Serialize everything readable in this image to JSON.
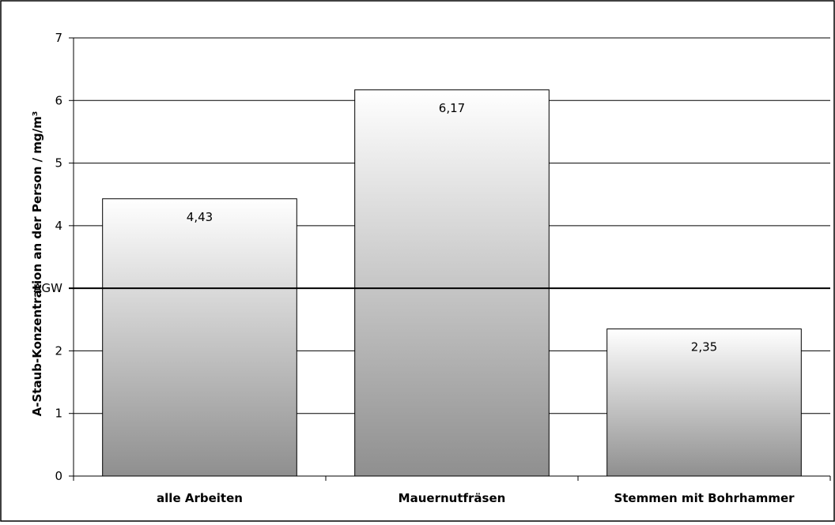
{
  "chart_data": {
    "type": "bar",
    "categories": [
      "alle Arbeiten",
      "Mauernutfräsen",
      "Stemmen mit Bohrhammer"
    ],
    "values": [
      4.43,
      6.17,
      2.35
    ],
    "value_labels": [
      "4,43",
      "6,17",
      "2,35"
    ],
    "title": "",
    "xlabel": "",
    "ylabel": "A-Staub-Konzentration an der Person / mg/m³",
    "ylim": [
      0,
      7
    ],
    "yticks": [
      0,
      1,
      2,
      3,
      4,
      5,
      6,
      7
    ],
    "ytick_labels": [
      "0",
      "1",
      "2",
      "",
      "4",
      "5",
      "6",
      "7"
    ],
    "grid": true,
    "legend": "none",
    "reference_line": {
      "label": "AGW",
      "value": 3
    },
    "colors": {
      "bar_top": "#ffffff",
      "bar_bottom": "#8f8f8f",
      "bar_border": "#000000",
      "grid": "#000000"
    }
  }
}
